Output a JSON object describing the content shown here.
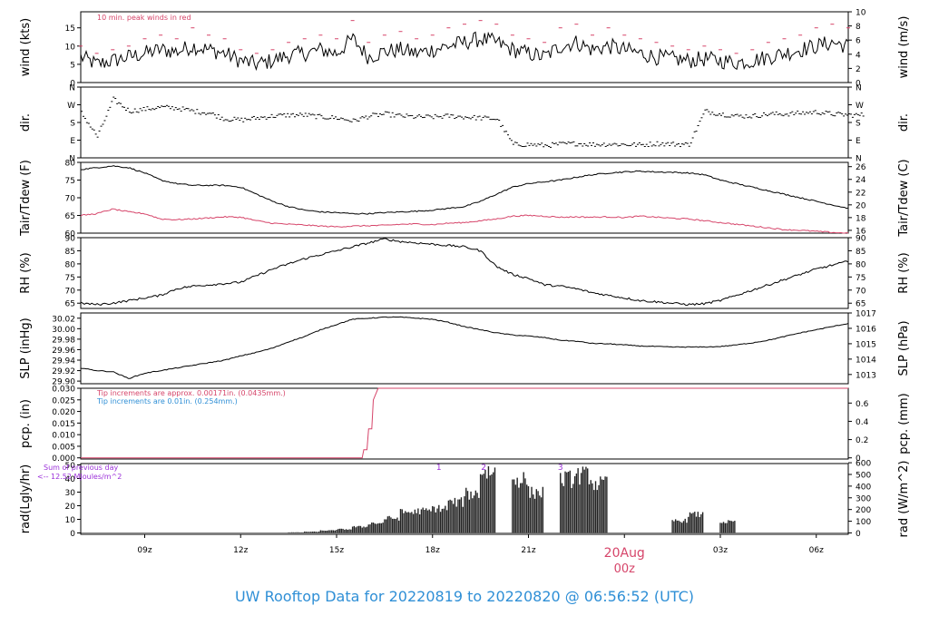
{
  "title": "UW Rooftop Data for 20220819  to  20220820 @ 06:56:52  (UTC)",
  "colors": {
    "accent": "#d6456a",
    "blue": "#2f8fd6",
    "purple": "#9b30d9",
    "line": "#000000"
  },
  "time_axis": {
    "ticks": [
      "09z",
      "12z",
      "15z",
      "18z",
      "21z",
      "03z",
      "06z"
    ],
    "tick_hours": [
      9,
      12,
      15,
      18,
      21,
      27,
      30
    ],
    "date_label": "20Aug",
    "date_sub": "00z",
    "date_hour": 24,
    "range_hours": [
      7,
      31
    ]
  },
  "panels": [
    {
      "id": "wind",
      "left_label": "wind (kts)",
      "right_label": "wind (m/s)",
      "left_ticks": [
        "0",
        "5",
        "10",
        "15"
      ],
      "left_tick_values": [
        0,
        5,
        10,
        15
      ],
      "right_ticks": [
        "0",
        "2",
        "4",
        "6",
        "8",
        "10"
      ],
      "right_tick_values": [
        0,
        2,
        4,
        6,
        8,
        10
      ],
      "ylim": [
        0,
        19.4
      ],
      "right_ylim": [
        0,
        10
      ],
      "annotation": "10 min. peak winds in red"
    },
    {
      "id": "dir",
      "left_label": "dir.",
      "right_label": "dir.",
      "left_ticks": [
        "N",
        "E",
        "S",
        "W",
        "N"
      ],
      "left_tick_values": [
        0,
        90,
        180,
        270,
        360
      ],
      "right_ticks": [
        "N",
        "E",
        "S",
        "W",
        "N"
      ],
      "right_tick_values": [
        0,
        90,
        180,
        270,
        360
      ],
      "ylim": [
        0,
        360
      ],
      "right_ylim": [
        0,
        360
      ]
    },
    {
      "id": "temp",
      "left_label": "Tair/Tdew (F)",
      "right_label": "Tair/Tdew (C)",
      "left_ticks": [
        "60",
        "65",
        "70",
        "75",
        "80"
      ],
      "left_tick_values": [
        60,
        65,
        70,
        75,
        80
      ],
      "right_ticks": [
        "16",
        "18",
        "20",
        "22",
        "24",
        "26"
      ],
      "right_tick_values": [
        16,
        18,
        20,
        22,
        24,
        26
      ],
      "ylim": [
        60,
        80
      ],
      "right_ylim": [
        15.56,
        26.67
      ]
    },
    {
      "id": "rh",
      "left_label": "RH (%)",
      "right_label": "RH (%)",
      "left_ticks": [
        "65",
        "70",
        "75",
        "80",
        "85",
        "90"
      ],
      "left_tick_values": [
        65,
        70,
        75,
        80,
        85,
        90
      ],
      "right_ticks": [
        "65",
        "70",
        "75",
        "80",
        "85",
        "90"
      ],
      "right_tick_values": [
        65,
        70,
        75,
        80,
        85,
        90
      ],
      "ylim": [
        63,
        90
      ],
      "right_ylim": [
        63,
        90
      ]
    },
    {
      "id": "slp",
      "left_label": "SLP (inHg)",
      "right_label": "SLP (hPa)",
      "left_ticks": [
        "29.90",
        "29.92",
        "29.94",
        "29.96",
        "29.98",
        "30.00",
        "30.02"
      ],
      "left_tick_values": [
        29.9,
        29.92,
        29.94,
        29.96,
        29.98,
        30.0,
        30.02
      ],
      "right_ticks": [
        "1013",
        "1014",
        "1015",
        "1016",
        "1017"
      ],
      "right_tick_values": [
        1013,
        1014,
        1015,
        1016,
        1017
      ],
      "ylim": [
        29.895,
        30.03
      ],
      "right_ylim": [
        1012.4,
        1017.0
      ]
    },
    {
      "id": "pcp",
      "left_label": "pcp. (in)",
      "right_label": "pcp. (mm)",
      "left_ticks": [
        "0.000",
        "0.005",
        "0.010",
        "0.015",
        "0.020",
        "0.025",
        "0.030"
      ],
      "left_tick_values": [
        0,
        0.005,
        0.01,
        0.015,
        0.02,
        0.025,
        0.03
      ],
      "right_ticks": [
        "0",
        "0.2",
        "0.4",
        "0.6"
      ],
      "right_tick_values": [
        0,
        0.2,
        0.4,
        0.6
      ],
      "ylim": [
        -0.0005,
        0.03
      ],
      "right_ylim": [
        -0.0127,
        0.762
      ],
      "annotation_1": "Tip increments are approx. 0.00171in. (0.0435mm.)",
      "annotation_2": "Tip increments are 0.01in. (0.254mm.)"
    },
    {
      "id": "rad",
      "left_label": "rad(Lgly/hr)",
      "right_label": "rad (W/m^2)",
      "left_ticks": [
        "0",
        "10",
        "20",
        "30",
        "40",
        "50"
      ],
      "left_tick_values": [
        0,
        10,
        20,
        30,
        40,
        50
      ],
      "right_ticks": [
        "0",
        "100",
        "200",
        "300",
        "400",
        "500",
        "600"
      ],
      "right_tick_values": [
        0,
        100,
        200,
        300,
        400,
        500,
        600
      ],
      "ylim": [
        -1,
        51
      ],
      "right_ylim": [
        -12,
        593
      ],
      "annotation_1": "Sum of previous day",
      "annotation_2": "<-- 12.52 MJoules/m^2",
      "markers": [
        {
          "label": "1",
          "hour": 18.2
        },
        {
          "label": "2",
          "hour": 19.6
        },
        {
          "label": "3",
          "hour": 22.0
        }
      ]
    }
  ],
  "chart_data": {
    "type": "line",
    "x_unit": "hours UTC since 20220819 00z",
    "series": [
      {
        "panel": "wind",
        "style": "line",
        "x": [
          7,
          7.5,
          8,
          8.5,
          9,
          9.5,
          10,
          10.5,
          11,
          11.5,
          12,
          12.5,
          13,
          13.5,
          14,
          14.5,
          15,
          15.5,
          16,
          16.5,
          17,
          17.5,
          18,
          18.5,
          19,
          19.5,
          20,
          20.5,
          21,
          21.5,
          22,
          22.5,
          23,
          23.5,
          24,
          24.5,
          25,
          25.5,
          26,
          26.5,
          27,
          27.5,
          28,
          28.5,
          29,
          29.5,
          30,
          30.5,
          31
        ],
        "y": [
          7,
          5,
          6,
          7,
          8,
          9,
          8.5,
          10,
          9,
          8,
          6,
          5,
          6,
          7.5,
          8,
          9,
          8,
          12,
          7,
          8.5,
          9,
          8,
          9,
          10,
          11,
          12,
          11,
          9,
          8,
          7,
          10,
          11,
          9,
          10,
          9,
          8,
          7,
          6.5,
          6,
          6.5,
          6,
          5.5,
          6,
          7,
          8,
          9,
          10,
          11,
          10
        ]
      },
      {
        "panel": "wind",
        "style": "peaks",
        "x": [
          7,
          7.5,
          8,
          8.5,
          9,
          9.5,
          10,
          10.5,
          11,
          11.5,
          12,
          12.5,
          13,
          13.5,
          14,
          14.5,
          15,
          15.5,
          16,
          16.5,
          17,
          17.5,
          18,
          18.5,
          19,
          19.5,
          20,
          20.5,
          21,
          21.5,
          22,
          22.5,
          23,
          23.5,
          24,
          24.5,
          25,
          25.5,
          26,
          26.5,
          27,
          27.5,
          28,
          28.5,
          29,
          29.5,
          30,
          30.5,
          31
        ],
        "y": [
          10,
          8,
          9,
          10,
          12,
          13,
          12,
          15,
          13,
          12,
          9,
          8,
          9,
          11,
          12,
          13,
          12,
          17,
          11,
          13,
          14,
          12,
          13,
          15,
          16,
          17,
          16,
          13,
          12,
          11,
          15,
          16,
          13,
          15,
          13,
          12,
          11,
          10,
          9,
          10,
          9,
          8,
          9,
          11,
          12,
          13,
          15,
          16,
          15
        ]
      },
      {
        "panel": "dir",
        "style": "dots",
        "x": [
          7,
          7.5,
          8,
          8.5,
          9,
          9.5,
          10,
          10.5,
          11,
          11.5,
          12,
          12.5,
          13,
          13.5,
          14,
          14.5,
          15,
          15.5,
          16,
          16.5,
          17,
          17.5,
          18,
          18.5,
          19,
          19.5,
          20,
          20.5,
          21,
          21.5,
          22,
          22.5,
          23,
          23.5,
          24,
          24.5,
          25,
          25.5,
          26,
          26.5,
          27,
          27.5,
          28,
          28.5,
          29,
          29.5,
          30,
          30.5,
          31
        ],
        "y": [
          230,
          110,
          300,
          240,
          250,
          260,
          255,
          240,
          230,
          200,
          195,
          205,
          215,
          220,
          220,
          210,
          205,
          190,
          215,
          225,
          215,
          210,
          210,
          215,
          210,
          205,
          200,
          70,
          70,
          65,
          72,
          75,
          70,
          72,
          70,
          68,
          75,
          72,
          70,
          240,
          225,
          215,
          215,
          225,
          225,
          230,
          235,
          225,
          220
        ]
      },
      {
        "panel": "temp",
        "name": "Tair",
        "style": "line",
        "x": [
          7,
          7.5,
          8,
          8.5,
          9,
          9.5,
          10,
          10.5,
          11,
          11.5,
          12,
          12.5,
          13,
          13.5,
          14,
          14.5,
          15,
          15.5,
          16,
          16.5,
          17,
          17.5,
          18,
          18.5,
          19,
          19.5,
          20,
          20.5,
          21,
          21.5,
          22,
          22.5,
          23,
          23.5,
          24,
          24.5,
          25,
          25.5,
          26,
          26.5,
          27,
          27.5,
          28,
          28.5,
          29,
          29.5,
          30,
          30.5,
          31
        ],
        "y": [
          78,
          78.5,
          79,
          78.5,
          77,
          75,
          74,
          73.5,
          73.5,
          73.5,
          73,
          71,
          69,
          67.5,
          66.5,
          66,
          65.8,
          65.5,
          65.5,
          65.8,
          66,
          66.2,
          66.5,
          67,
          67.5,
          69,
          71,
          73,
          74,
          74.5,
          75,
          75.8,
          76.5,
          77,
          77.3,
          77.5,
          77.3,
          77.2,
          77,
          76.5,
          75,
          74,
          73,
          72,
          71,
          70,
          69,
          68,
          67
        ]
      },
      {
        "panel": "temp",
        "name": "Tdew",
        "style": "line",
        "x": [
          7,
          7.5,
          8,
          8.5,
          9,
          9.5,
          10,
          10.5,
          11,
          11.5,
          12,
          12.5,
          13,
          13.5,
          14,
          14.5,
          15,
          15.5,
          16,
          16.5,
          17,
          17.5,
          18,
          18.5,
          19,
          19.5,
          20,
          20.5,
          21,
          21.5,
          22,
          22.5,
          23,
          23.5,
          24,
          24.5,
          25,
          25.5,
          26,
          26.5,
          27,
          27.5,
          28,
          28.5,
          29,
          29.5,
          30,
          30.5,
          31
        ],
        "y": [
          65,
          65.5,
          66.8,
          66,
          65.5,
          64,
          63.8,
          64,
          64.3,
          64.6,
          64.5,
          63.5,
          62.8,
          62.5,
          62.3,
          62,
          61.8,
          62,
          62.1,
          62.2,
          62.5,
          62.6,
          62.4,
          62.8,
          63,
          63.5,
          64,
          64.8,
          65,
          64.8,
          64.5,
          64.6,
          64.5,
          64.6,
          64.4,
          64.8,
          64.5,
          64.2,
          64,
          63.5,
          63,
          62.5,
          62,
          61.5,
          61,
          60.8,
          60.5,
          60.2,
          60
        ]
      },
      {
        "panel": "rh",
        "style": "line",
        "x": [
          7,
          7.5,
          8,
          8.5,
          9,
          9.5,
          10,
          10.5,
          11,
          11.5,
          12,
          12.5,
          13,
          13.5,
          14,
          14.5,
          15,
          15.5,
          16,
          16.5,
          17,
          17.5,
          18,
          18.5,
          19,
          19.5,
          20,
          20.5,
          21,
          21.5,
          22,
          22.5,
          23,
          23.5,
          24,
          24.5,
          25,
          25.5,
          26,
          26.5,
          27,
          27.5,
          28,
          28.5,
          29,
          29.5,
          30,
          30.5,
          31
        ],
        "y": [
          65,
          64.5,
          65,
          66,
          67,
          68,
          70.5,
          71.5,
          72,
          72.5,
          73,
          75.5,
          78,
          80,
          82,
          83.5,
          85,
          86.5,
          88,
          89.5,
          88.5,
          88,
          87.5,
          87,
          86.5,
          85,
          79,
          76,
          74.5,
          72,
          71.5,
          70.5,
          69,
          68,
          67,
          66,
          65.5,
          65,
          64.5,
          64.8,
          66,
          68,
          70,
          72,
          74,
          76,
          78,
          79.5,
          81
        ]
      },
      {
        "panel": "slp",
        "style": "line",
        "x": [
          7,
          7.5,
          8,
          8.5,
          9,
          9.5,
          10,
          10.5,
          11,
          11.5,
          12,
          12.5,
          13,
          13.5,
          14,
          14.5,
          15,
          15.5,
          16,
          16.5,
          17,
          17.5,
          18,
          18.5,
          19,
          19.5,
          20,
          20.5,
          21,
          21.5,
          22,
          22.5,
          23,
          23.5,
          24,
          24.5,
          25,
          25.5,
          26,
          26.5,
          27,
          27.5,
          28,
          28.5,
          29,
          29.5,
          30,
          30.5,
          31
        ],
        "y": [
          29.925,
          29.92,
          29.918,
          29.905,
          29.915,
          29.92,
          29.925,
          29.93,
          29.935,
          29.94,
          29.948,
          29.955,
          29.963,
          29.975,
          29.985,
          29.998,
          30.008,
          30.018,
          30.02,
          30.022,
          30.022,
          30.02,
          30.018,
          30.012,
          30.004,
          29.998,
          29.992,
          29.988,
          29.986,
          29.983,
          29.978,
          29.976,
          29.972,
          29.971,
          29.969,
          29.967,
          29.966,
          29.965,
          29.965,
          29.965,
          29.966,
          29.969,
          29.973,
          29.978,
          29.985,
          29.992,
          29.998,
          30.004,
          30.01
        ]
      },
      {
        "panel": "pcp",
        "style": "step",
        "x": [
          7,
          15.8,
          15.85,
          15.95,
          16.0,
          16.1,
          16.15,
          16.3,
          31
        ],
        "y": [
          0,
          0,
          0.0035,
          0.0035,
          0.0125,
          0.0125,
          0.025,
          0.03,
          0.03
        ]
      },
      {
        "panel": "rad",
        "style": "bars",
        "x": [
          7,
          7.5,
          8,
          8.5,
          9,
          9.5,
          10,
          10.5,
          11,
          11.5,
          12,
          12.5,
          13,
          13.5,
          14,
          14.5,
          15,
          15.5,
          16,
          16.5,
          17,
          17.5,
          18,
          18.5,
          19,
          19.5,
          20,
          20.5,
          21,
          21.5,
          22,
          22.5,
          23,
          23.5,
          24,
          24.5,
          25,
          25.5,
          26,
          26.5,
          27,
          27.5,
          28,
          28.5,
          29,
          29.5,
          30,
          30.5,
          31
        ],
        "y": [
          0,
          0,
          0,
          0,
          0,
          0,
          0,
          0,
          0,
          0,
          0,
          0,
          0,
          0.5,
          1,
          2,
          3,
          5,
          8,
          12,
          17,
          18,
          20,
          25,
          32,
          50,
          0,
          44,
          33,
          0,
          44,
          47,
          40,
          0,
          0,
          0,
          0,
          10,
          15,
          0,
          9,
          0,
          0,
          0,
          0,
          0,
          0,
          0,
          0
        ]
      }
    ]
  }
}
